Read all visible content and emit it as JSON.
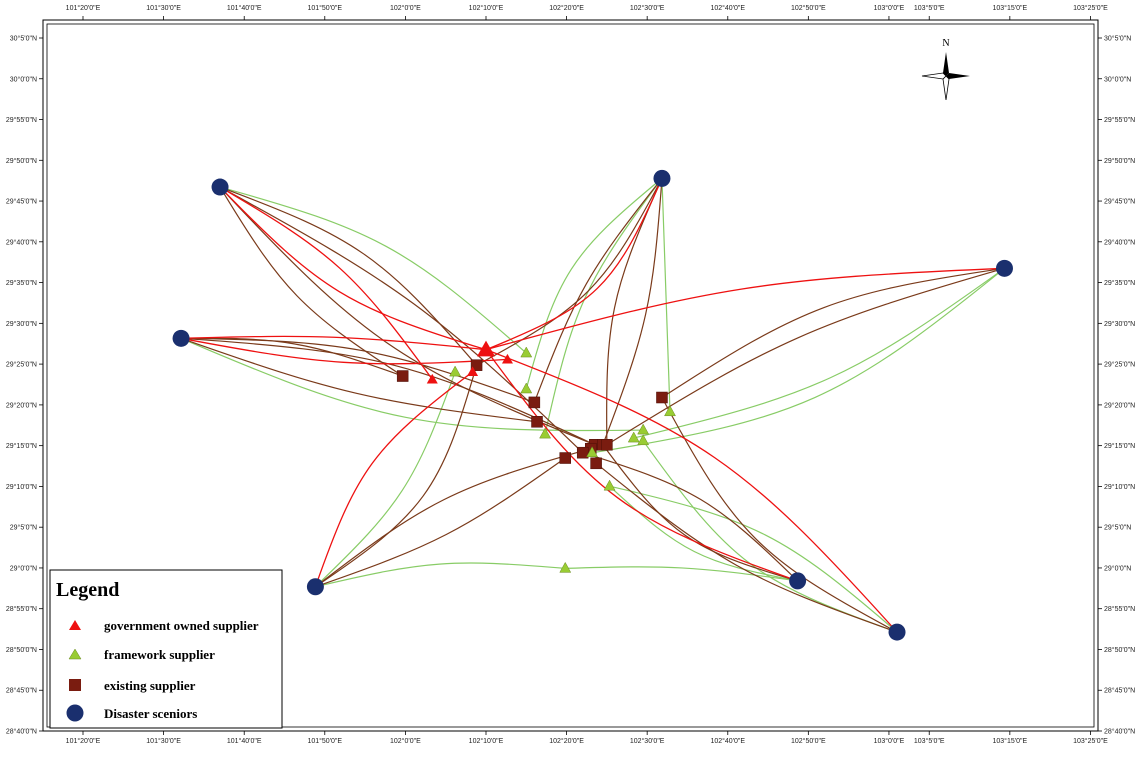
{
  "map": {
    "lon_ticks": [
      {
        "label": "101°20'0\"E",
        "lon": 101.3333
      },
      {
        "label": "101°30'0\"E",
        "lon": 101.5
      },
      {
        "label": "101°40'0\"E",
        "lon": 101.6667
      },
      {
        "label": "101°50'0\"E",
        "lon": 101.8333
      },
      {
        "label": "102°0'0\"E",
        "lon": 102.0
      },
      {
        "label": "102°10'0\"E",
        "lon": 102.1667
      },
      {
        "label": "102°20'0\"E",
        "lon": 102.3333
      },
      {
        "label": "102°30'0\"E",
        "lon": 102.5
      },
      {
        "label": "102°40'0\"E",
        "lon": 102.6667
      },
      {
        "label": "102°50'0\"E",
        "lon": 102.8333
      },
      {
        "label": "103°0'0\"E",
        "lon": 103.0
      },
      {
        "label": "103°5'0\"E",
        "lon": 103.0833
      },
      {
        "label": "103°15'0\"E",
        "lon": 103.25
      },
      {
        "label": "103°25'0\"E",
        "lon": 103.4167
      }
    ],
    "lat_ticks": [
      {
        "label": "30°5'0\"N",
        "lat": 30.0833
      },
      {
        "label": "30°0'0\"N",
        "lat": 30.0
      },
      {
        "label": "29°55'0\"N",
        "lat": 29.9167
      },
      {
        "label": "29°50'0\"N",
        "lat": 29.8333
      },
      {
        "label": "29°45'0\"N",
        "lat": 29.75
      },
      {
        "label": "29°40'0\"N",
        "lat": 29.6667
      },
      {
        "label": "29°35'0\"N",
        "lat": 29.5833
      },
      {
        "label": "29°30'0\"N",
        "lat": 29.5
      },
      {
        "label": "29°25'0\"N",
        "lat": 29.4167
      },
      {
        "label": "29°20'0\"N",
        "lat": 29.3333
      },
      {
        "label": "29°15'0\"N",
        "lat": 29.25
      },
      {
        "label": "29°10'0\"N",
        "lat": 29.1667
      },
      {
        "label": "29°5'0\"N",
        "lat": 29.0833
      },
      {
        "label": "29°0'0\"N",
        "lat": 29.0
      },
      {
        "label": "28°55'0\"N",
        "lat": 28.9167
      },
      {
        "label": "28°50'0\"N",
        "lat": 28.8333
      },
      {
        "label": "28°45'0\"N",
        "lat": 28.75
      },
      {
        "label": "28°40'0\"N",
        "lat": 28.6667
      }
    ],
    "north_label": "N",
    "colors": {
      "government": "#ee1111",
      "framework": "#99cc33",
      "existing": "#7a1c10",
      "disaster": "#1a2f6e",
      "route_brown": "#7a3a1a",
      "route_green": "#88cc66",
      "route_red": "#ee1111"
    },
    "disaster_scenarios": [
      {
        "lon": 101.6167,
        "lat": 29.7786
      },
      {
        "lon": 101.5361,
        "lat": 29.4694
      },
      {
        "lon": 102.5306,
        "lat": 29.7964
      },
      {
        "lon": 103.2389,
        "lat": 29.6125
      },
      {
        "lon": 101.8139,
        "lat": 28.9616
      },
      {
        "lon": 102.8111,
        "lat": 28.9735
      },
      {
        "lon": 103.0167,
        "lat": 28.8689
      }
    ],
    "government_suppliers": [
      {
        "lon": 102.1667,
        "lat": 29.4462
      },
      {
        "lon": 102.0556,
        "lat": 29.3856
      },
      {
        "lon": 102.2111,
        "lat": 29.4263
      },
      {
        "lon": 102.1389,
        "lat": 29.4007
      }
    ],
    "framework_suppliers": [
      {
        "lon": 102.25,
        "lat": 29.4393
      },
      {
        "lon": 102.25,
        "lat": 29.3658
      },
      {
        "lon": 102.1028,
        "lat": 29.4004
      },
      {
        "lon": 102.2889,
        "lat": 29.2736
      },
      {
        "lon": 102.5472,
        "lat": 29.3192
      },
      {
        "lon": 102.4722,
        "lat": 29.2655
      },
      {
        "lon": 102.4917,
        "lat": 29.2818
      },
      {
        "lon": 102.4917,
        "lat": 29.2599
      },
      {
        "lon": 102.3861,
        "lat": 29.2354
      },
      {
        "lon": 102.4222,
        "lat": 29.1671
      },
      {
        "lon": 102.3306,
        "lat": 28.9991
      }
    ],
    "existing_suppliers": [
      {
        "lon": 101.9944,
        "lat": 29.3923
      },
      {
        "lon": 102.1472,
        "lat": 29.4145
      },
      {
        "lon": 102.2667,
        "lat": 29.3384
      },
      {
        "lon": 102.2722,
        "lat": 29.2988
      },
      {
        "lon": 102.5306,
        "lat": 29.3484
      },
      {
        "lon": 102.3917,
        "lat": 29.2518
      },
      {
        "lon": 102.4083,
        "lat": 29.2518
      },
      {
        "lon": 102.4167,
        "lat": 29.2518
      },
      {
        "lon": 102.3833,
        "lat": 29.2437
      },
      {
        "lon": 102.3667,
        "lat": 29.2356
      },
      {
        "lon": 102.3306,
        "lat": 29.2247
      },
      {
        "lon": 102.3944,
        "lat": 29.2139
      }
    ],
    "routes": [
      {
        "type": "red",
        "from": [
          102.1667,
          29.4462
        ],
        "to": [
          101.6167,
          29.7786
        ],
        "bend": -40
      },
      {
        "type": "red",
        "from": [
          102.0556,
          29.3856
        ],
        "to": [
          101.6167,
          29.7786
        ],
        "bend": 30
      },
      {
        "type": "red",
        "from": [
          102.1667,
          29.4462
        ],
        "to": [
          102.5306,
          29.7964
        ],
        "bend": 50
      },
      {
        "type": "red",
        "from": [
          102.1667,
          29.4462
        ],
        "to": [
          103.2389,
          29.6125
        ],
        "bend": -30
      },
      {
        "type": "red",
        "from": [
          102.1667,
          29.4462
        ],
        "to": [
          101.5361,
          29.4694
        ],
        "bend": 10
      },
      {
        "type": "red",
        "from": [
          102.1389,
          29.4007
        ],
        "to": [
          101.8139,
          28.9616
        ],
        "bend": 40
      },
      {
        "type": "red",
        "from": [
          102.1667,
          29.4462
        ],
        "to": [
          102.8111,
          28.9735
        ],
        "bend": 60
      },
      {
        "type": "red",
        "from": [
          102.1667,
          29.4462
        ],
        "to": [
          103.0167,
          28.8689
        ],
        "bend": -60
      },
      {
        "type": "red",
        "from": [
          102.2111,
          29.4263
        ],
        "to": [
          101.5361,
          29.4694
        ],
        "bend": -20
      },
      {
        "type": "green",
        "from": [
          102.25,
          29.4393
        ],
        "to": [
          101.6167,
          29.7786
        ],
        "bend": 40
      },
      {
        "type": "green",
        "from": [
          102.25,
          29.3658
        ],
        "to": [
          102.5306,
          29.7964
        ],
        "bend": -40
      },
      {
        "type": "green",
        "from": [
          102.5472,
          29.3192
        ],
        "to": [
          102.5306,
          29.7964
        ],
        "bend": 0
      },
      {
        "type": "green",
        "from": [
          102.4722,
          29.2655
        ],
        "to": [
          103.2389,
          29.6125
        ],
        "bend": 40
      },
      {
        "type": "green",
        "from": [
          102.4917,
          29.2818
        ],
        "to": [
          101.5361,
          29.4694
        ],
        "bend": -50
      },
      {
        "type": "green",
        "from": [
          102.1028,
          29.4004
        ],
        "to": [
          101.8139,
          28.9616
        ],
        "bend": -30
      },
      {
        "type": "green",
        "from": [
          102.3306,
          28.9991
        ],
        "to": [
          101.8139,
          28.9616
        ],
        "bend": 20
      },
      {
        "type": "green",
        "from": [
          102.3306,
          28.9991
        ],
        "to": [
          102.8111,
          28.9735
        ],
        "bend": -10
      },
      {
        "type": "green",
        "from": [
          102.4222,
          29.1671
        ],
        "to": [
          103.0167,
          28.8689
        ],
        "bend": -40
      },
      {
        "type": "green",
        "from": [
          102.4222,
          29.1671
        ],
        "to": [
          102.8111,
          28.9735
        ],
        "bend": 30
      },
      {
        "type": "green",
        "from": [
          102.3861,
          29.2354
        ],
        "to": [
          103.2389,
          29.6125
        ],
        "bend": 60
      },
      {
        "type": "green",
        "from": [
          102.2889,
          29.2736
        ],
        "to": [
          102.5306,
          29.7964
        ],
        "bend": -30
      },
      {
        "type": "green",
        "from": [
          102.4917,
          29.2599
        ],
        "to": [
          103.0167,
          28.8689
        ],
        "bend": 50
      },
      {
        "type": "brown",
        "from": [
          101.9944,
          29.3923
        ],
        "to": [
          101.6167,
          29.7786
        ],
        "bend": -30
      },
      {
        "type": "brown",
        "from": [
          101.9944,
          29.3923
        ],
        "to": [
          101.5361,
          29.4694
        ],
        "bend": 20
      },
      {
        "type": "brown",
        "from": [
          102.1472,
          29.4145
        ],
        "to": [
          101.8139,
          28.9616
        ],
        "bend": -50
      },
      {
        "type": "brown",
        "from": [
          102.1472,
          29.4145
        ],
        "to": [
          102.5306,
          29.7964
        ],
        "bend": 40
      },
      {
        "type": "brown",
        "from": [
          102.2667,
          29.3384
        ],
        "to": [
          102.5306,
          29.7964
        ],
        "bend": -20
      },
      {
        "type": "brown",
        "from": [
          102.2667,
          29.3384
        ],
        "to": [
          101.5361,
          29.4694
        ],
        "bend": 30
      },
      {
        "type": "brown",
        "from": [
          102.2722,
          29.2988
        ],
        "to": [
          101.5361,
          29.4694
        ],
        "bend": -20
      },
      {
        "type": "brown",
        "from": [
          102.5306,
          29.3484
        ],
        "to": [
          103.2389,
          29.6125
        ],
        "bend": -40
      },
      {
        "type": "brown",
        "from": [
          102.5306,
          29.3484
        ],
        "to": [
          103.0167,
          28.8689
        ],
        "bend": 50
      },
      {
        "type": "brown",
        "from": [
          102.3917,
          29.2518
        ],
        "to": [
          101.6167,
          29.7786
        ],
        "bend": -50
      },
      {
        "type": "brown",
        "from": [
          102.4083,
          29.2518
        ],
        "to": [
          102.5306,
          29.7964
        ],
        "bend": 20
      },
      {
        "type": "brown",
        "from": [
          102.4167,
          29.2518
        ],
        "to": [
          103.2389,
          29.6125
        ],
        "bend": -30
      },
      {
        "type": "brown",
        "from": [
          102.3833,
          29.2437
        ],
        "to": [
          101.8139,
          28.9616
        ],
        "bend": 30
      },
      {
        "type": "brown",
        "from": [
          102.3667,
          29.2356
        ],
        "to": [
          102.8111,
          28.9735
        ],
        "bend": -30
      },
      {
        "type": "brown",
        "from": [
          102.3306,
          29.2247
        ],
        "to": [
          101.8139,
          28.9616
        ],
        "bend": -20
      },
      {
        "type": "brown",
        "from": [
          102.3944,
          29.2139
        ],
        "to": [
          103.0167,
          28.8689
        ],
        "bend": 30
      },
      {
        "type": "brown",
        "from": [
          102.3917,
          29.2518
        ],
        "to": [
          101.5361,
          29.4694
        ],
        "bend": 40
      },
      {
        "type": "brown",
        "from": [
          102.4083,
          29.2518
        ],
        "to": [
          102.8111,
          28.9735
        ],
        "bend": 40
      },
      {
        "type": "brown",
        "from": [
          102.3667,
          29.2356
        ],
        "to": [
          101.6167,
          29.7786
        ],
        "bend": 30
      },
      {
        "type": "brown",
        "from": [
          102.4167,
          29.2518
        ],
        "to": [
          102.5306,
          29.7964
        ],
        "bend": -30
      },
      {
        "type": "brown",
        "from": [
          102.1472,
          29.4145
        ],
        "to": [
          101.6167,
          29.7786
        ],
        "bend": 40
      }
    ]
  },
  "legend": {
    "title": "Legend",
    "items": {
      "government": "government owned supplier",
      "framework": "framework supplier",
      "existing": "existing supplier",
      "disaster": "Disaster sceniors"
    }
  }
}
